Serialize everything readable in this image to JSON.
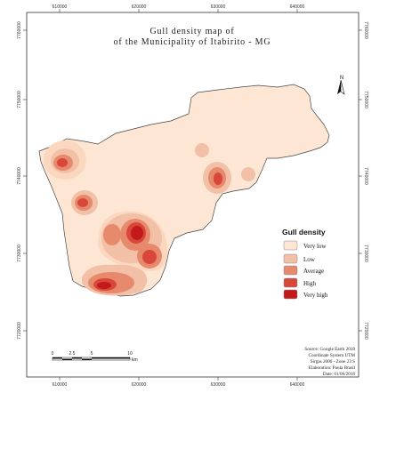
{
  "title": {
    "line1": "Gull density map of",
    "line2": "of the Municipality of Itabirito - MG"
  },
  "grid": {
    "top_labels": [
      "610000",
      "620000",
      "630000",
      "640000"
    ],
    "bottom_labels": [
      "610000",
      "620000",
      "630000",
      "640000"
    ],
    "left_labels": [
      "7760000",
      "7750000",
      "7740000",
      "7730000",
      "7720000"
    ],
    "right_labels": [
      "7760000",
      "7750000",
      "7740000",
      "7730000",
      "7720000"
    ]
  },
  "north_arrow": {
    "label": "N"
  },
  "legend": {
    "title": "Gull density",
    "items": [
      {
        "label": "Very low",
        "color": "#fde6d3"
      },
      {
        "label": "Low",
        "color": "#f2c0a6"
      },
      {
        "label": "Average",
        "color": "#e6896c"
      },
      {
        "label": "High",
        "color": "#d9473a"
      },
      {
        "label": "Very high",
        "color": "#c21a1a"
      }
    ]
  },
  "scale_bar": {
    "labels": [
      "0",
      "2.5",
      "5",
      "10"
    ],
    "unit": "km"
  },
  "credits": {
    "source": "Source: Google Earth 2018",
    "coordinate_system": "Coordinate System UTM",
    "datum": "Sirgas 2000 - Zone 23 S",
    "elaboration": "Elaboration: Paula Brasil",
    "date": "Date: 01/06/2018"
  }
}
